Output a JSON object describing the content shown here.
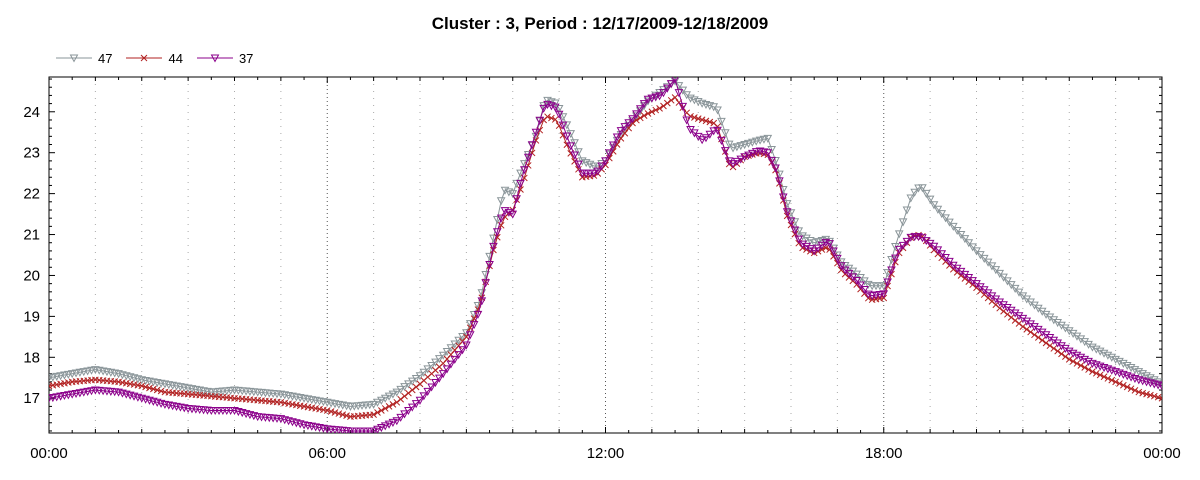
{
  "chart_data": {
    "type": "line",
    "title": "Cluster : 3, Period : 12/17/2009-12/18/2009",
    "xlabel": "",
    "ylabel": "",
    "x_ticks": [
      "00:00",
      "06:00",
      "12:00",
      "18:00",
      "00:00"
    ],
    "y_ticks": [
      "17",
      "18",
      "19",
      "20",
      "21",
      "22",
      "23",
      "24"
    ],
    "xlim": [
      0,
      24
    ],
    "ylim": [
      16.15,
      24.85
    ],
    "grid": {
      "vertical_major": true,
      "vertical_minor": true,
      "horizontal": false
    },
    "legend_position": "top-left",
    "series": [
      {
        "name": "47",
        "color": "#8a9599",
        "marker": "triangle-down",
        "keypoints": [
          [
            0,
            17.5
          ],
          [
            0.5,
            17.6
          ],
          [
            1,
            17.7
          ],
          [
            1.5,
            17.6
          ],
          [
            2,
            17.45
          ],
          [
            2.5,
            17.35
          ],
          [
            3,
            17.25
          ],
          [
            3.5,
            17.15
          ],
          [
            4,
            17.2
          ],
          [
            4.5,
            17.15
          ],
          [
            5,
            17.1
          ],
          [
            5.5,
            17.0
          ],
          [
            6,
            16.9
          ],
          [
            6.5,
            16.8
          ],
          [
            7,
            16.85
          ],
          [
            7.5,
            17.15
          ],
          [
            8,
            17.55
          ],
          [
            8.5,
            18.05
          ],
          [
            9,
            18.6
          ],
          [
            9.3,
            19.4
          ],
          [
            9.6,
            21.0
          ],
          [
            9.8,
            22.1
          ],
          [
            10,
            22.0
          ],
          [
            10.2,
            22.6
          ],
          [
            10.5,
            23.4
          ],
          [
            10.7,
            24.3
          ],
          [
            10.95,
            24.2
          ],
          [
            11.2,
            23.6
          ],
          [
            11.5,
            22.8
          ],
          [
            11.8,
            22.65
          ],
          [
            12,
            22.8
          ],
          [
            12.3,
            23.4
          ],
          [
            12.6,
            23.8
          ],
          [
            12.9,
            24.25
          ],
          [
            13.2,
            24.5
          ],
          [
            13.5,
            24.75
          ],
          [
            13.8,
            24.35
          ],
          [
            14.1,
            24.2
          ],
          [
            14.4,
            24.1
          ],
          [
            14.7,
            23.1
          ],
          [
            15,
            23.2
          ],
          [
            15.3,
            23.3
          ],
          [
            15.5,
            23.35
          ],
          [
            15.7,
            22.7
          ],
          [
            15.9,
            21.8
          ],
          [
            16.2,
            21.0
          ],
          [
            16.5,
            20.8
          ],
          [
            16.8,
            20.9
          ],
          [
            17.1,
            20.3
          ],
          [
            17.4,
            20.05
          ],
          [
            17.7,
            19.75
          ],
          [
            18,
            19.75
          ],
          [
            18.3,
            20.9
          ],
          [
            18.6,
            21.95
          ],
          [
            18.8,
            22.2
          ],
          [
            19.1,
            21.7
          ],
          [
            19.5,
            21.2
          ],
          [
            20,
            20.6
          ],
          [
            20.5,
            20.05
          ],
          [
            21,
            19.5
          ],
          [
            21.5,
            19.05
          ],
          [
            22,
            18.65
          ],
          [
            22.5,
            18.25
          ],
          [
            23,
            17.95
          ],
          [
            23.5,
            17.65
          ],
          [
            24,
            17.35
          ]
        ]
      },
      {
        "name": "44",
        "color": "#b22222",
        "marker": "x",
        "keypoints": [
          [
            0,
            17.3
          ],
          [
            0.5,
            17.4
          ],
          [
            1,
            17.45
          ],
          [
            1.5,
            17.4
          ],
          [
            2,
            17.3
          ],
          [
            2.5,
            17.15
          ],
          [
            3,
            17.1
          ],
          [
            3.5,
            17.05
          ],
          [
            4,
            17.0
          ],
          [
            4.5,
            16.95
          ],
          [
            5,
            16.9
          ],
          [
            5.5,
            16.8
          ],
          [
            6,
            16.7
          ],
          [
            6.5,
            16.55
          ],
          [
            7,
            16.6
          ],
          [
            7.5,
            16.9
          ],
          [
            8,
            17.35
          ],
          [
            8.5,
            17.85
          ],
          [
            9,
            18.5
          ],
          [
            9.3,
            19.3
          ],
          [
            9.6,
            20.7
          ],
          [
            9.8,
            21.4
          ],
          [
            10,
            21.6
          ],
          [
            10.2,
            22.2
          ],
          [
            10.5,
            23.3
          ],
          [
            10.7,
            23.9
          ],
          [
            10.95,
            23.8
          ],
          [
            11.2,
            23.1
          ],
          [
            11.5,
            22.4
          ],
          [
            11.8,
            22.45
          ],
          [
            12,
            22.7
          ],
          [
            12.3,
            23.3
          ],
          [
            12.6,
            23.75
          ],
          [
            12.9,
            23.95
          ],
          [
            13.2,
            24.1
          ],
          [
            13.5,
            24.35
          ],
          [
            13.8,
            23.9
          ],
          [
            14.1,
            23.8
          ],
          [
            14.4,
            23.7
          ],
          [
            14.7,
            22.6
          ],
          [
            15,
            22.9
          ],
          [
            15.3,
            23.0
          ],
          [
            15.5,
            22.95
          ],
          [
            15.7,
            22.5
          ],
          [
            15.9,
            21.5
          ],
          [
            16.2,
            20.7
          ],
          [
            16.5,
            20.55
          ],
          [
            16.8,
            20.7
          ],
          [
            17.1,
            20.1
          ],
          [
            17.4,
            19.8
          ],
          [
            17.7,
            19.4
          ],
          [
            18,
            19.45
          ],
          [
            18.3,
            20.5
          ],
          [
            18.6,
            20.95
          ],
          [
            18.8,
            21.0
          ],
          [
            19.1,
            20.6
          ],
          [
            19.5,
            20.15
          ],
          [
            20,
            19.7
          ],
          [
            20.5,
            19.2
          ],
          [
            21,
            18.75
          ],
          [
            21.5,
            18.35
          ],
          [
            22,
            17.95
          ],
          [
            22.5,
            17.65
          ],
          [
            23,
            17.4
          ],
          [
            23.5,
            17.15
          ],
          [
            24,
            17.0
          ]
        ]
      },
      {
        "name": "37",
        "color": "#8b008b",
        "marker": "triangle-down",
        "keypoints": [
          [
            0,
            17.0
          ],
          [
            0.5,
            17.1
          ],
          [
            1,
            17.2
          ],
          [
            1.5,
            17.15
          ],
          [
            2,
            17.0
          ],
          [
            2.5,
            16.85
          ],
          [
            3,
            16.75
          ],
          [
            3.5,
            16.7
          ],
          [
            4,
            16.7
          ],
          [
            4.5,
            16.55
          ],
          [
            5,
            16.5
          ],
          [
            5.5,
            16.35
          ],
          [
            6,
            16.25
          ],
          [
            6.5,
            16.2
          ],
          [
            7,
            16.2
          ],
          [
            7.5,
            16.45
          ],
          [
            8,
            16.95
          ],
          [
            8.5,
            17.6
          ],
          [
            9,
            18.3
          ],
          [
            9.3,
            19.2
          ],
          [
            9.6,
            20.8
          ],
          [
            9.8,
            21.6
          ],
          [
            10,
            21.5
          ],
          [
            10.2,
            22.4
          ],
          [
            10.5,
            23.5
          ],
          [
            10.7,
            24.2
          ],
          [
            10.95,
            24.1
          ],
          [
            11.2,
            23.3
          ],
          [
            11.5,
            22.5
          ],
          [
            11.8,
            22.5
          ],
          [
            12,
            22.8
          ],
          [
            12.3,
            23.5
          ],
          [
            12.6,
            23.85
          ],
          [
            12.9,
            24.3
          ],
          [
            13.2,
            24.4
          ],
          [
            13.5,
            24.8
          ],
          [
            13.8,
            23.6
          ],
          [
            14.1,
            23.3
          ],
          [
            14.4,
            23.6
          ],
          [
            14.7,
            22.7
          ],
          [
            15,
            22.9
          ],
          [
            15.3,
            23.05
          ],
          [
            15.5,
            23.0
          ],
          [
            15.7,
            22.55
          ],
          [
            15.9,
            21.6
          ],
          [
            16.2,
            20.8
          ],
          [
            16.5,
            20.6
          ],
          [
            16.8,
            20.85
          ],
          [
            17.1,
            20.2
          ],
          [
            17.4,
            19.9
          ],
          [
            17.7,
            19.5
          ],
          [
            18,
            19.55
          ],
          [
            18.3,
            20.6
          ],
          [
            18.6,
            20.95
          ],
          [
            18.8,
            20.95
          ],
          [
            19.1,
            20.7
          ],
          [
            19.5,
            20.25
          ],
          [
            20,
            19.8
          ],
          [
            20.5,
            19.35
          ],
          [
            21,
            18.95
          ],
          [
            21.5,
            18.55
          ],
          [
            22,
            18.15
          ],
          [
            22.5,
            17.85
          ],
          [
            23,
            17.65
          ],
          [
            23.5,
            17.45
          ],
          [
            24,
            17.3
          ]
        ]
      }
    ]
  }
}
